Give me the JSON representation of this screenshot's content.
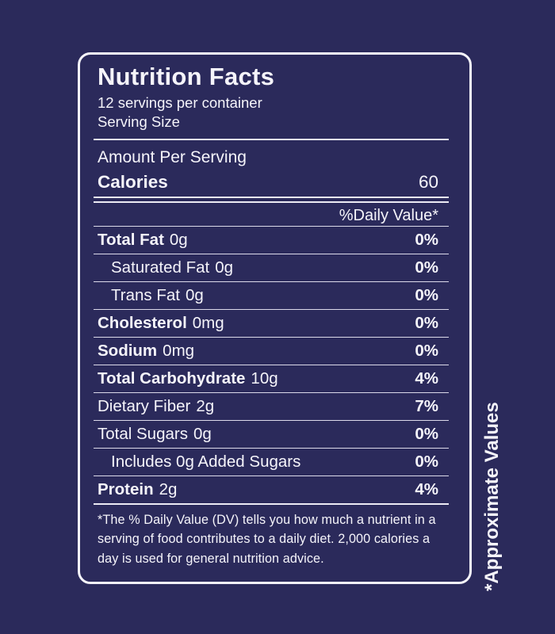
{
  "colors": {
    "background": "#2b2a5b",
    "panel_border": "#f5f4fa",
    "text": "#f5f4fa"
  },
  "label": {
    "title": "Nutrition Facts",
    "servings_line": "12 servings per container",
    "serving_size_line": "Serving Size",
    "amount_per_serving": "Amount Per Serving",
    "calories": {
      "label": "Calories",
      "value": "60"
    },
    "daily_value_header": "%Daily Value*",
    "rows": [
      {
        "name": "Total Fat",
        "amount": "0g",
        "dv": "0%"
      },
      {
        "name": "Saturated Fat",
        "amount": "0g",
        "dv": "0%"
      },
      {
        "name": "Trans Fat",
        "amount": "0g",
        "dv": "0%"
      },
      {
        "name": "Cholesterol",
        "amount": "0mg",
        "dv": "0%"
      },
      {
        "name": "Sodium",
        "amount": "0mg",
        "dv": "0%"
      },
      {
        "name": "Total Carbohydrate",
        "amount": "10g",
        "dv": "4%"
      },
      {
        "name": "Dietary Fiber",
        "amount": "2g",
        "dv": "7%"
      },
      {
        "name": "Total Sugars",
        "amount": "0g",
        "dv": "0%"
      },
      {
        "name": "Includes 0g Added Sugars",
        "amount": "",
        "dv": "0%"
      },
      {
        "name": "Protein",
        "amount": "2g",
        "dv": "4%"
      }
    ],
    "footnote": "*The % Daily Value (DV) tells you how much a nutrient in a serving of food contributes to a daily diet. 2,000 calories a day is used for general nutrition advice.",
    "side_note": "*Approximate Values"
  }
}
